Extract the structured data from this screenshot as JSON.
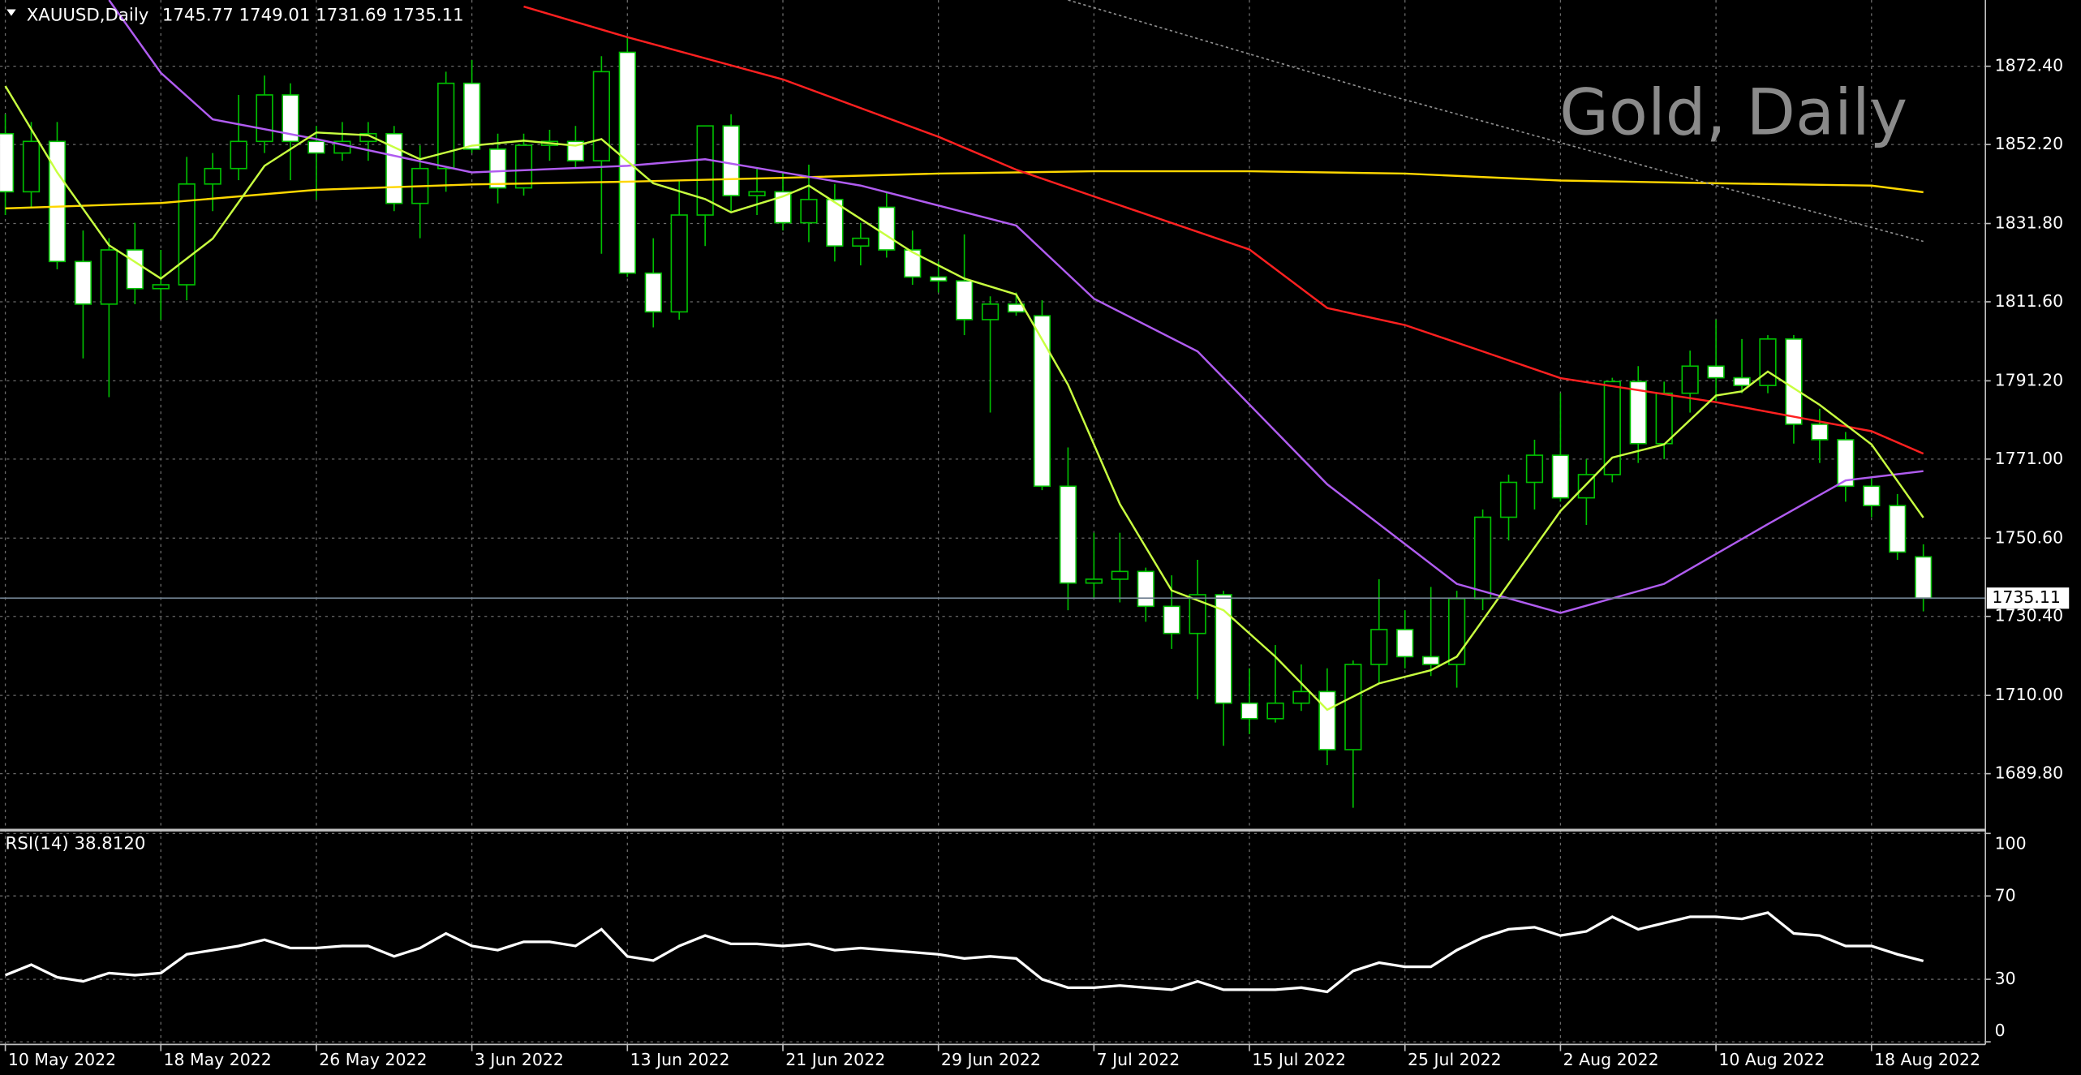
{
  "chart_data": [
    {
      "type": "candlestick",
      "symbol": "XAUUSD,Daily",
      "watermark": "Gold, Daily",
      "categories": [
        "10 May 2022",
        null,
        null,
        null,
        null,
        null,
        "18 May 2022",
        null,
        null,
        null,
        null,
        null,
        "26 May 2022",
        null,
        null,
        null,
        null,
        null,
        "3 Jun 2022",
        null,
        null,
        null,
        null,
        null,
        "13 Jun 2022",
        null,
        null,
        null,
        null,
        null,
        "21 Jun 2022",
        null,
        null,
        null,
        null,
        null,
        "29 Jun 2022",
        null,
        null,
        null,
        null,
        null,
        "7 Jul 2022",
        null,
        null,
        null,
        null,
        null,
        "15 Jul 2022",
        null,
        null,
        null,
        null,
        null,
        "25 Jul 2022",
        null,
        null,
        null,
        null,
        null,
        "2 Aug 2022",
        null,
        null,
        null,
        null,
        null,
        "10 Aug 2022",
        null,
        null,
        null,
        null,
        null,
        "18 Aug 2022",
        null,
        null
      ],
      "open": [
        1855,
        1840,
        1853,
        1822,
        1811,
        1825,
        1815,
        1816,
        1842,
        1846,
        1853,
        1865,
        1853,
        1850,
        1853,
        1855,
        1837,
        1846,
        1868,
        1851,
        1841,
        1852,
        1853,
        1848,
        1876,
        1819,
        1809,
        1834,
        1857,
        1839,
        1840,
        1832,
        1838,
        1826,
        1836,
        1825,
        1818,
        1817,
        1807,
        1811,
        1808,
        1764,
        1739,
        1740,
        1742,
        1733,
        1726,
        1736,
        1708,
        1704,
        1708,
        1711,
        1696,
        1718,
        1727,
        1720,
        1718,
        1735,
        1756,
        1765,
        1772,
        1761,
        1767,
        1791,
        1775,
        1788,
        1795,
        1792,
        1790,
        1802,
        1780,
        1776,
        1764,
        1759,
        1745.77
      ],
      "high": [
        1860,
        1858,
        1858,
        1830,
        1828,
        1832,
        1825,
        1849,
        1850,
        1865,
        1870,
        1868,
        1857,
        1858,
        1858,
        1857,
        1852,
        1871,
        1874,
        1855,
        1855,
        1856,
        1857,
        1875,
        1880,
        1828,
        1843,
        1857,
        1860,
        1846,
        1845,
        1847,
        1842,
        1832,
        1840,
        1830,
        1822,
        1829,
        1813,
        1814,
        1812,
        1774,
        1752,
        1752,
        1743,
        1741,
        1745,
        1737,
        1717,
        1723,
        1718,
        1717,
        1719,
        1740,
        1732,
        1738,
        1737,
        1758,
        1767,
        1776,
        1788,
        1771,
        1792,
        1795,
        1791,
        1799,
        1807,
        1802,
        1803,
        1803,
        1784,
        1778,
        1766,
        1762,
        1749.01
      ],
      "low": [
        1834,
        1836,
        1820,
        1797,
        1787,
        1811,
        1807,
        1812,
        1835,
        1843,
        1850,
        1843,
        1838,
        1848,
        1848,
        1835,
        1828,
        1840,
        1850,
        1837,
        1839,
        1848,
        1846,
        1824,
        1818,
        1805,
        1807,
        1826,
        1835,
        1834,
        1830,
        1827,
        1822,
        1821,
        1823,
        1816,
        1814,
        1803,
        1783,
        1808,
        1763,
        1732,
        1735,
        1734,
        1729,
        1722,
        1709,
        1697,
        1700,
        1703,
        1706,
        1692,
        1681,
        1713,
        1717,
        1715,
        1712,
        1732,
        1750,
        1758,
        1760,
        1754,
        1765,
        1770,
        1771,
        1783,
        1786,
        1788,
        1788,
        1775,
        1770,
        1760,
        1756,
        1745,
        1731.69
      ],
      "close": [
        1840,
        1853,
        1822,
        1811,
        1825,
        1815,
        1816,
        1842,
        1846,
        1853,
        1865,
        1853,
        1850,
        1853,
        1855,
        1837,
        1846,
        1868,
        1851,
        1841,
        1852,
        1853,
        1848,
        1871,
        1819,
        1809,
        1834,
        1857,
        1839,
        1840,
        1832,
        1838,
        1826,
        1828,
        1825,
        1818,
        1817,
        1807,
        1811,
        1809,
        1764,
        1739,
        1740,
        1742,
        1733,
        1726,
        1736,
        1708,
        1704,
        1708,
        1711,
        1696,
        1718,
        1727,
        1720,
        1718,
        1735,
        1756,
        1765,
        1772,
        1761,
        1767,
        1791,
        1775,
        1788,
        1795,
        1792,
        1790,
        1802,
        1780,
        1776,
        1764,
        1759,
        1747,
        1735.11
      ],
      "up_color": "#000000",
      "down_color": "#ffffff",
      "wick_color": "#00c000",
      "overlays": [
        {
          "color": "#ffd700",
          "x": [
            0,
            6,
            12,
            18,
            24,
            30,
            36,
            42,
            48,
            54,
            60,
            66,
            72,
            74
          ],
          "values": [
            1835.7,
            1837.1,
            1840.5,
            1841.9,
            1842.6,
            1843.6,
            1844.7,
            1845.3,
            1845.3,
            1844.7,
            1842.9,
            1842.2,
            1841.6,
            1839.9
          ]
        },
        {
          "color": "#ff2020",
          "x": [
            20,
            24,
            30,
            36,
            39,
            42,
            48,
            51,
            54,
            57,
            60,
            66,
            72,
            74
          ],
          "values": [
            1887.8,
            1879.9,
            1869.0,
            1854.2,
            1845.7,
            1838.8,
            1825.1,
            1810.0,
            1805.6,
            1798.8,
            1791.9,
            1785.7,
            1778.2,
            1772.4
          ]
        },
        {
          "color": "#b05cf0",
          "x": [
            4,
            6,
            8,
            12,
            18,
            24,
            27,
            33,
            39,
            42,
            46,
            51,
            56,
            60,
            64,
            68,
            71,
            74
          ],
          "values": [
            1889.5,
            1870.7,
            1858.7,
            1853.6,
            1845.0,
            1846.7,
            1848.4,
            1841.6,
            1831.3,
            1812.4,
            1798.8,
            1764.5,
            1738.8,
            1731.3,
            1738.8,
            1754.2,
            1765.5,
            1767.9
          ]
        },
        {
          "color": "#c8ff40",
          "x": [
            0,
            2,
            4,
            6,
            8,
            10,
            12,
            14,
            16,
            18,
            20,
            22,
            23,
            25,
            27,
            28,
            30,
            31,
            33,
            35,
            37,
            39,
            41,
            43,
            45,
            47,
            49,
            51,
            53,
            55,
            56,
            58,
            60,
            62,
            64,
            66,
            67,
            68,
            70,
            72,
            74
          ],
          "values": [
            1867.3,
            1845.0,
            1826.2,
            1817.6,
            1827.9,
            1846.7,
            1855.3,
            1854.6,
            1848.4,
            1851.9,
            1853.2,
            1851.9,
            1853.6,
            1842.2,
            1838.1,
            1834.7,
            1838.8,
            1841.6,
            1833.0,
            1824.4,
            1817.6,
            1813.5,
            1790.2,
            1759.4,
            1737.1,
            1732.0,
            1720.0,
            1706.3,
            1713.1,
            1716.5,
            1720.0,
            1738.8,
            1757.6,
            1771.4,
            1774.8,
            1787.4,
            1788.5,
            1793.6,
            1785.0,
            1774.8,
            1755.9
          ]
        },
        {
          "color": "#909090",
          "dashed": true,
          "x": [
            41,
            53,
            66,
            74
          ],
          "values": [
            1889.5,
            1865.6,
            1841.6,
            1827.2
          ]
        }
      ],
      "ylim": [
        1675.4,
        1889.5
      ],
      "yticks": [
        {
          "value": 1689.8,
          "label": "1689.80"
        },
        {
          "value": 1710,
          "label": "1710.00"
        },
        {
          "value": 1730.4,
          "label": "1730.40"
        },
        {
          "value": 1750.6,
          "label": "1750.60"
        },
        {
          "value": 1771,
          "label": "1771.00"
        },
        {
          "value": 1791.2,
          "label": "1791.20"
        },
        {
          "value": 1811.6,
          "label": "1811.60"
        },
        {
          "value": 1831.8,
          "label": "1831.80"
        },
        {
          "value": 1852.2,
          "label": "1852.20"
        },
        {
          "value": 1872.4,
          "label": "1872.40"
        }
      ],
      "grid": true
    },
    {
      "type": "line",
      "title": "RSI(14)",
      "color": "#ffffff",
      "values": [
        32,
        37,
        31,
        29,
        33,
        32,
        33,
        42,
        44,
        46,
        49,
        45,
        45,
        46,
        46,
        41,
        45,
        52,
        46,
        44,
        48,
        48,
        46,
        54,
        41,
        39,
        46,
        51,
        47,
        47,
        46,
        47,
        44,
        45,
        44,
        43,
        42,
        40,
        41,
        40,
        30,
        26,
        26,
        27,
        26,
        25,
        29,
        25,
        25,
        25,
        26,
        24,
        34,
        38,
        36,
        36,
        44,
        50,
        54,
        55,
        51,
        53,
        60,
        54,
        57,
        60,
        60,
        59,
        62,
        52,
        51,
        46,
        46,
        42,
        38.812
      ],
      "value_labels": [
        null,
        null,
        null,
        null,
        null,
        null,
        null,
        null,
        null,
        null,
        null,
        null,
        null,
        null,
        null,
        null,
        null,
        null,
        null,
        null,
        null,
        null,
        null,
        null,
        null,
        null,
        null,
        null,
        null,
        null,
        null,
        null,
        null,
        null,
        null,
        null,
        null,
        null,
        null,
        null,
        null,
        null,
        null,
        null,
        null,
        null,
        null,
        null,
        null,
        null,
        null,
        null,
        null,
        null,
        null,
        null,
        null,
        null,
        null,
        null,
        null,
        null,
        null,
        null,
        null,
        null,
        null,
        null,
        null,
        null,
        null,
        null,
        null,
        null,
        "38.8120"
      ],
      "ylim": [
        0,
        100
      ],
      "yticks": [
        0,
        30,
        70,
        100
      ],
      "grid": true
    }
  ]
}
